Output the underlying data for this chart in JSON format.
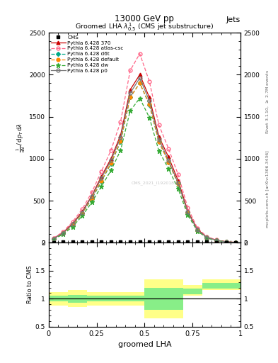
{
  "title_top": "13000 GeV pp",
  "title_right": "Jets",
  "plot_title": "Groomed LHA $\\lambda^{1}_{0.5}$ (CMS jet substructure)",
  "xlabel": "groomed LHA",
  "right_label_top": "Rivet 3.1.10, $\\geq$ 2.7M events",
  "right_label_bottom": "mcplots.cern.ch [arXiv:1306.3436]",
  "watermark": "CMS_2021_I1920187",
  "x_edges": [
    0.0,
    0.05,
    0.1,
    0.15,
    0.2,
    0.25,
    0.3,
    0.35,
    0.4,
    0.45,
    0.5,
    0.55,
    0.6,
    0.65,
    0.7,
    0.75,
    0.8,
    0.85,
    0.9,
    0.95,
    1.0
  ],
  "x_centers": [
    0.025,
    0.075,
    0.125,
    0.175,
    0.225,
    0.275,
    0.325,
    0.375,
    0.425,
    0.475,
    0.525,
    0.575,
    0.625,
    0.675,
    0.725,
    0.775,
    0.825,
    0.875,
    0.925,
    0.975
  ],
  "cms_data": [
    5,
    10,
    10,
    10,
    10,
    10,
    10,
    10,
    10,
    10,
    10,
    10,
    10,
    10,
    10,
    10,
    10,
    5,
    5,
    5
  ],
  "p370_data": [
    50,
    120,
    230,
    370,
    560,
    790,
    1000,
    1280,
    1820,
    2000,
    1730,
    1260,
    1020,
    740,
    380,
    160,
    65,
    30,
    12,
    4
  ],
  "atlas_csc_data": [
    55,
    130,
    250,
    400,
    600,
    850,
    1100,
    1440,
    2050,
    2250,
    1920,
    1400,
    1120,
    810,
    420,
    175,
    72,
    33,
    13,
    4
  ],
  "d6t_data": [
    45,
    110,
    210,
    350,
    520,
    730,
    940,
    1200,
    1730,
    1900,
    1640,
    1200,
    960,
    700,
    360,
    150,
    60,
    28,
    11,
    3
  ],
  "default_data": [
    45,
    110,
    210,
    350,
    530,
    740,
    950,
    1210,
    1730,
    1900,
    1650,
    1200,
    960,
    700,
    360,
    150,
    60,
    28,
    11,
    3
  ],
  "dw_data": [
    40,
    100,
    190,
    320,
    480,
    670,
    860,
    1100,
    1570,
    1720,
    1490,
    1090,
    880,
    640,
    330,
    140,
    55,
    25,
    10,
    3
  ],
  "p0_data": [
    48,
    115,
    220,
    360,
    550,
    770,
    980,
    1250,
    1780,
    1960,
    1690,
    1230,
    980,
    710,
    365,
    152,
    62,
    29,
    11,
    3
  ],
  "ratio_x_edges": [
    0.0,
    0.1,
    0.2,
    0.3,
    0.4,
    0.5,
    0.6,
    0.7,
    0.8,
    1.0
  ],
  "ratio_yellow_low": [
    0.88,
    0.85,
    0.88,
    0.88,
    0.88,
    0.65,
    0.65,
    1.05,
    1.15,
    1.15
  ],
  "ratio_yellow_high": [
    1.12,
    1.15,
    1.12,
    1.12,
    1.12,
    1.35,
    1.35,
    1.25,
    1.35,
    1.35
  ],
  "ratio_green_low": [
    0.95,
    0.93,
    0.95,
    0.95,
    0.95,
    0.8,
    0.8,
    1.08,
    1.18,
    1.18
  ],
  "ratio_green_high": [
    1.05,
    1.07,
    1.05,
    1.05,
    1.05,
    1.2,
    1.2,
    1.18,
    1.28,
    1.28
  ],
  "colors": {
    "cms": "#000000",
    "p370": "#cc0000",
    "atlas_csc": "#ff6688",
    "d6t": "#00aa88",
    "default": "#ff8800",
    "dw": "#33aa33",
    "p0": "#777777"
  },
  "ylim_main": [
    0,
    2500
  ],
  "yticks_main": [
    0,
    500,
    1000,
    1500,
    2000,
    2500
  ],
  "ylim_ratio": [
    0.5,
    2.0
  ],
  "yticks_ratio": [
    0.5,
    1.0,
    1.5,
    2.0
  ],
  "xlim": [
    0.0,
    1.0
  ],
  "xticks": [
    0.0,
    0.25,
    0.5,
    0.75,
    1.0
  ]
}
